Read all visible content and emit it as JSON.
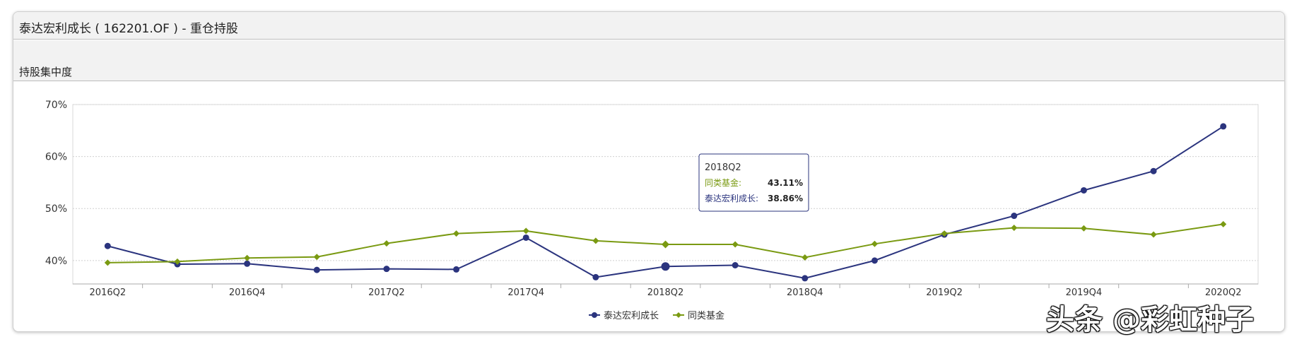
{
  "header": {
    "title": "泰达宏利成长 ( 162201.OF ) - 重仓持股"
  },
  "section": {
    "title": "持股集中度"
  },
  "watermark": "头条 @彩虹种子",
  "chart_data": {
    "type": "line",
    "categories": [
      "2016Q2",
      "2016Q3",
      "2016Q4",
      "2017Q1",
      "2017Q2",
      "2017Q3",
      "2017Q4",
      "2018Q1",
      "2018Q2",
      "2018Q3",
      "2018Q4",
      "2019Q1",
      "2019Q2",
      "2019Q3",
      "2019Q4",
      "2020Q1",
      "2020Q2"
    ],
    "tick_labels": [
      "2016Q2",
      "2016Q4",
      "2017Q2",
      "2017Q4",
      "2018Q2",
      "2018Q4",
      "2019Q2",
      "2019Q4",
      "2020Q2"
    ],
    "y_ticks": [
      "40%",
      "50%",
      "60%",
      "70%"
    ],
    "ylim": [
      35.5,
      70
    ],
    "grid": true,
    "legend_position": "bottom-center",
    "series": [
      {
        "name": "泰达宏利成长",
        "color": "#2b347e",
        "marker": "circle",
        "values": [
          42.8,
          39.3,
          39.4,
          38.2,
          38.4,
          38.3,
          44.4,
          36.8,
          38.86,
          39.1,
          36.6,
          40.0,
          45.0,
          48.6,
          53.5,
          57.2,
          65.8
        ]
      },
      {
        "name": "同类基金",
        "color": "#7a9a12",
        "marker": "diamond",
        "values": [
          39.6,
          39.8,
          40.5,
          40.7,
          43.3,
          45.2,
          45.7,
          43.8,
          43.11,
          43.1,
          40.6,
          43.2,
          45.2,
          46.3,
          46.2,
          45.0,
          47.0
        ]
      }
    ],
    "tooltip": {
      "category": "2018Q2",
      "rows": [
        {
          "label": "同类基金:",
          "value": "43.11%",
          "color": "#7a9a12"
        },
        {
          "label": "泰达宏利成长:",
          "value": "38.86%",
          "color": "#2b347e"
        }
      ]
    }
  }
}
